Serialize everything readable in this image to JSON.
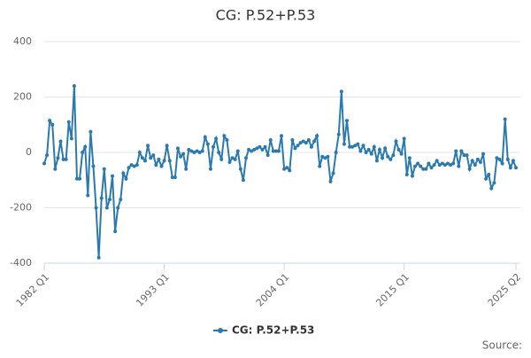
{
  "chart_data": {
    "type": "line",
    "title": "CG: P.52+P.53",
    "source": "Source:",
    "categories": [
      "1982 Q1",
      null,
      null,
      null,
      null,
      null,
      null,
      null,
      null,
      null,
      null,
      null,
      null,
      null,
      null,
      null,
      null,
      null,
      null,
      null,
      null,
      null,
      null,
      null,
      null,
      null,
      null,
      null,
      null,
      null,
      null,
      null,
      null,
      null,
      null,
      null,
      null,
      null,
      null,
      null,
      null,
      null,
      null,
      null,
      "1993 Q1",
      null,
      null,
      null,
      null,
      null,
      null,
      null,
      null,
      null,
      null,
      null,
      null,
      null,
      null,
      null,
      null,
      null,
      null,
      null,
      null,
      null,
      null,
      null,
      null,
      null,
      null,
      null,
      null,
      null,
      null,
      null,
      null,
      null,
      null,
      null,
      null,
      null,
      null,
      null,
      null,
      null,
      null,
      null,
      "2004 Q1",
      null,
      null,
      null,
      null,
      null,
      null,
      null,
      null,
      null,
      null,
      null,
      null,
      null,
      null,
      null,
      null,
      null,
      null,
      null,
      null,
      null,
      null,
      null,
      null,
      null,
      null,
      null,
      null,
      null,
      null,
      null,
      null,
      null,
      null,
      null,
      null,
      null,
      null,
      null,
      null,
      null,
      null,
      null,
      "2015 Q1",
      null,
      null,
      null,
      null,
      null,
      null,
      null,
      null,
      null,
      null,
      null,
      null,
      null,
      null,
      null,
      null,
      null,
      null,
      null,
      null,
      null,
      null,
      null,
      null,
      null,
      null,
      null,
      null,
      null,
      null,
      null,
      null,
      null,
      null,
      null,
      null,
      null,
      null,
      null,
      null,
      "2025 Q2"
    ],
    "series": [
      {
        "name": "CG: P.52+P.53",
        "color": "#2a7ab0",
        "values": [
          -40,
          -10,
          115,
          100,
          -60,
          -20,
          40,
          -25,
          -25,
          110,
          50,
          240,
          -95,
          -95,
          0,
          20,
          -155,
          75,
          -50,
          -200,
          -380,
          -165,
          -60,
          -200,
          -170,
          -85,
          -285,
          -200,
          -170,
          -75,
          -95,
          -55,
          -45,
          -50,
          -45,
          0,
          -20,
          -30,
          25,
          -20,
          -10,
          -45,
          -25,
          -50,
          -30,
          25,
          -30,
          -90,
          -90,
          15,
          -15,
          -5,
          -60,
          10,
          5,
          0,
          5,
          0,
          5,
          55,
          30,
          -60,
          20,
          50,
          0,
          -25,
          60,
          45,
          -35,
          -20,
          -25,
          5,
          -60,
          -100,
          -20,
          10,
          5,
          10,
          15,
          20,
          10,
          20,
          -10,
          45,
          5,
          5,
          5,
          60,
          -60,
          -55,
          -65,
          45,
          15,
          25,
          35,
          40,
          35,
          45,
          20,
          40,
          60,
          -50,
          -15,
          -20,
          -15,
          -105,
          -75,
          0,
          65,
          220,
          30,
          115,
          20,
          20,
          25,
          30,
          5,
          25,
          0,
          10,
          -5,
          20,
          -30,
          10,
          -20,
          15,
          -15,
          -25,
          -10,
          40,
          10,
          -5,
          50,
          -80,
          -20,
          -85,
          -50,
          -40,
          -50,
          -60,
          -60,
          -40,
          -55,
          -45,
          -30,
          -45,
          -40,
          -45,
          -40,
          -45,
          -40,
          5,
          -50,
          5,
          -10,
          -10,
          -60,
          -30,
          -45,
          -25,
          -35,
          -5,
          -95,
          -80,
          -130,
          -110,
          -20,
          -25,
          -40,
          120,
          -25,
          -55,
          -30,
          -55
        ]
      }
    ],
    "ylim": [
      -400,
      400
    ],
    "yticks": [
      -400,
      -200,
      0,
      200,
      400
    ],
    "grid": true,
    "legend": "bottom"
  }
}
